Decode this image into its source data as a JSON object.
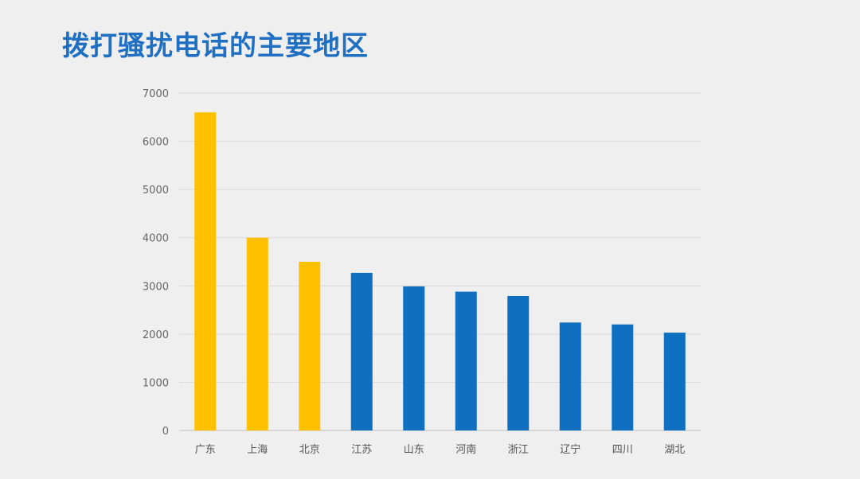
{
  "title": "拨打骚扰电话的主要地区",
  "colors": {
    "title": "#1f6fc2",
    "highlight": "#ffc000",
    "normal": "#0f6fc0",
    "grid": "#d9d9d9",
    "axis": "#bfbfbf",
    "background": "#efefef",
    "corner_circle": "#2b8fe6"
  },
  "chart_data": {
    "type": "bar",
    "title": "",
    "xlabel": "",
    "ylabel": "",
    "categories": [
      "广东",
      "上海",
      "北京",
      "江苏",
      "山东",
      "河南",
      "浙江",
      "辽宁",
      "四川",
      "湖北"
    ],
    "values": [
      6600,
      4000,
      3500,
      3270,
      2990,
      2880,
      2790,
      2240,
      2200,
      2030
    ],
    "highlighted": [
      "广东",
      "上海",
      "北京"
    ],
    "ylim": [
      0,
      7000
    ],
    "yticks": [
      "0",
      "1000",
      "2000",
      "3000",
      "4000",
      "5000",
      "6000",
      "7000"
    ],
    "grid": true,
    "legend": "none"
  }
}
